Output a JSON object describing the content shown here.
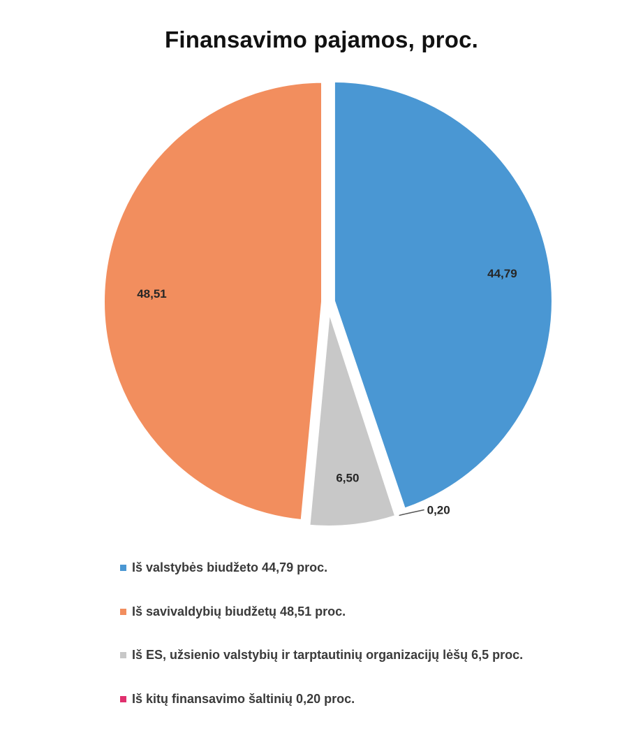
{
  "chart_data": {
    "type": "pie",
    "title": "Finansavimo pajamos, proc.",
    "slices": [
      {
        "label": "Iš valstybės biudžeto 44,79 proc.",
        "value": 44.79,
        "data_label": "44,79",
        "color": "#4a97d3"
      },
      {
        "label": "Iš kitų finansavimo šaltinių 0,20 proc.",
        "value": 0.2,
        "data_label": "0,20",
        "color": "#e0306e"
      },
      {
        "label": "Iš ES, užsienio valstybių ir tarptautinių organizacijų lėšų 6,5 proc.",
        "value": 6.5,
        "data_label": "6,50",
        "color": "#c8c8c8"
      },
      {
        "label": "Iš savivaldybių biudžetų 48,51 proc.",
        "value": 48.51,
        "data_label": "48,51",
        "color": "#f28e5e"
      }
    ],
    "legend": [
      {
        "text": "Iš valstybės biudžeto 44,79 proc.",
        "color": "#4a97d3"
      },
      {
        "text": "Iš savivaldybių biudžetų 48,51 proc.",
        "color": "#f28e5e"
      },
      {
        "text": "Iš ES, užsienio valstybių ir tarptautinių organizacijų lėšų 6,5 proc.",
        "color": "#c8c8c8"
      },
      {
        "text": "Iš kitų finansavimo šaltinių 0,20 proc.",
        "color": "#e0306e"
      }
    ],
    "legend_position": "bottom"
  }
}
